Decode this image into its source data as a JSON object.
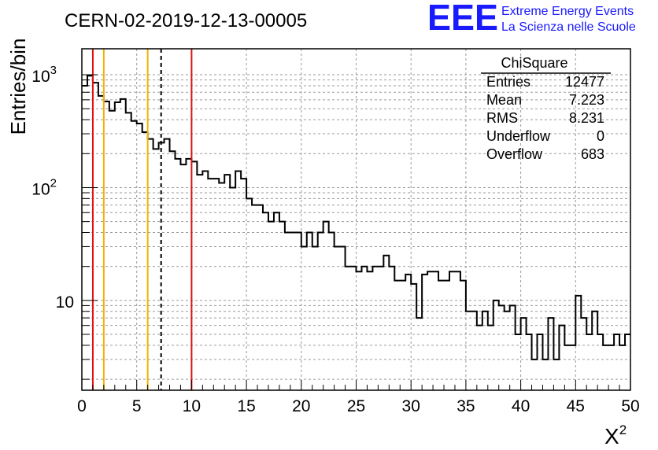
{
  "run_title": "CERN-02-2019-12-13-00005",
  "logo": {
    "mark": "EEE",
    "line1": "Extreme Energy Events",
    "line2": "La Scienza nelle Scuole",
    "color": "#1a1aff"
  },
  "stats_box": {
    "title": "ChiSquare",
    "rows": [
      {
        "label": "Entries",
        "value": "12477"
      },
      {
        "label": "Mean",
        "value": "7.223"
      },
      {
        "label": "RMS",
        "value": "8.231"
      },
      {
        "label": "Underflow",
        "value": "0"
      },
      {
        "label": "Overflow",
        "value": "683"
      }
    ]
  },
  "chart_data": {
    "type": "histogram",
    "xlabel": "χ²",
    "ylabel": "Entries/bin",
    "xlim": [
      0,
      50
    ],
    "ylim": [
      1.6,
      1700
    ],
    "y_scale": "log",
    "grid": true,
    "bin_width": 0.5,
    "x_ticks": [
      "0",
      "5",
      "10",
      "15",
      "20",
      "25",
      "30",
      "35",
      "40",
      "45",
      "50"
    ],
    "y_tick_labels": [
      {
        "value": 1000,
        "label": "10",
        "exp": "3"
      },
      {
        "value": 100,
        "label": "10",
        "exp": "2"
      },
      {
        "value": 10,
        "label": "10",
        "exp": ""
      }
    ],
    "values": [
      800,
      980,
      850,
      650,
      580,
      480,
      570,
      610,
      460,
      390,
      370,
      310,
      270,
      220,
      250,
      270,
      210,
      180,
      160,
      180,
      170,
      130,
      140,
      120,
      120,
      110,
      130,
      100,
      140,
      120,
      80,
      70,
      70,
      60,
      50,
      60,
      50,
      40,
      40,
      40,
      30,
      40,
      30,
      40,
      50,
      40,
      30,
      30,
      20,
      20,
      18,
      20,
      18,
      20,
      20,
      25,
      20,
      15,
      15,
      17,
      14,
      7,
      17,
      18,
      18,
      15,
      15,
      18,
      18,
      15,
      8,
      8,
      6,
      8,
      6,
      10,
      9,
      8,
      9,
      5,
      7,
      5,
      3,
      5,
      3,
      7,
      3,
      6,
      4,
      4,
      11,
      7,
      5,
      8,
      5,
      4,
      4,
      5,
      4,
      5
    ],
    "markers": [
      {
        "x": 1,
        "color": "#e01010",
        "style": "solid"
      },
      {
        "x": 2,
        "color": "#f0b400",
        "style": "solid"
      },
      {
        "x": 6,
        "color": "#f0b400",
        "style": "solid"
      },
      {
        "x": 7.223,
        "color": "#000000",
        "style": "dashed"
      },
      {
        "x": 10,
        "color": "#e01010",
        "style": "solid"
      }
    ]
  }
}
